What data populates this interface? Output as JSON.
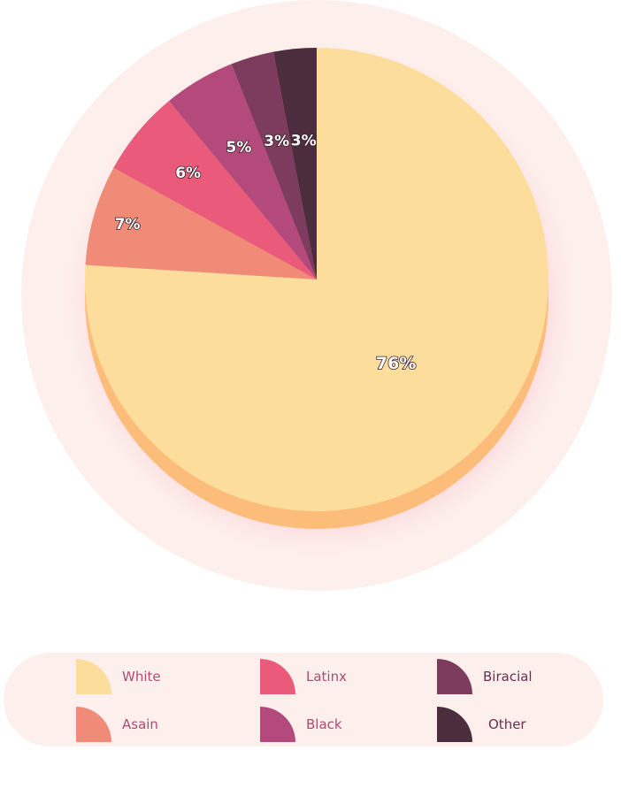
{
  "chart_data": {
    "type": "pie",
    "title": "",
    "slices": [
      {
        "label": "White",
        "value": 76,
        "display": "76%",
        "color": "#fddd9c",
        "side": "#fdbd7a"
      },
      {
        "label": "Asain",
        "value": 7,
        "display": "7%",
        "color": "#f08b78",
        "side": "#d8705f"
      },
      {
        "label": "Latinx",
        "value": 6,
        "display": "6%",
        "color": "#ea5a7b",
        "side": "#cc4466"
      },
      {
        "label": "Black",
        "value": 5,
        "display": "5%",
        "color": "#b44a7c",
        "side": "#963a66"
      },
      {
        "label": "Biracial",
        "value": 3,
        "display": "3%",
        "color": "#7d3b5d",
        "side": "#652d4a"
      },
      {
        "label": "Other",
        "value": 3,
        "display": "3%",
        "color": "#4b2d3e",
        "side": "#3a2230"
      }
    ],
    "legend_position": "bottom"
  },
  "legend": {
    "items": [
      {
        "label": "White",
        "color": "#fddd9c"
      },
      {
        "label": "Latinx",
        "color": "#ea5a7b"
      },
      {
        "label": "Biracial",
        "color": "#7d3b5d"
      },
      {
        "label": "Asain",
        "color": "#f08b78"
      },
      {
        "label": "Black",
        "color": "#b44a7c"
      },
      {
        "label": "Other",
        "color": "#4b2d3e"
      }
    ]
  },
  "colors": {
    "halo": "#fdf0ec",
    "shadow": "#f7b3c8"
  }
}
